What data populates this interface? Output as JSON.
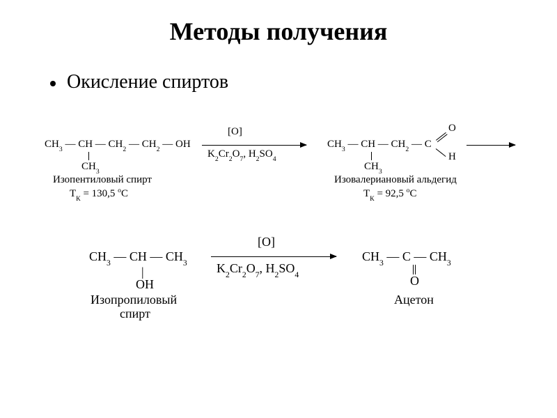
{
  "title": "Методы получения",
  "subtitle": "Окисление спиртов",
  "reaction1": {
    "reactant_formula_html": "CH<span class='sub'>3</span> — CH — CH<span class='sub'>2</span> — CH<span class='sub'>2</span> — OH",
    "reactant_branch": "CH",
    "reactant_branch_sub": "3",
    "reactant_name": "Изопентиловый спирт",
    "reactant_bp": "Т<span class='sub'>К</span> = 130,5 <span class='sup'>o</span>C",
    "reagent_top": "[O]",
    "reagent_bottom_html": "K<span class='sub'>2</span>Cr<span class='sub'>2</span>O<span class='sub'>7</span>, H<span class='sub'>2</span>SO<span class='sub'>4</span>",
    "product_formula_html": "CH<span class='sub'>3</span> — CH — CH<span class='sub'>2</span> — C",
    "product_branch": "CH",
    "product_branch_sub": "3",
    "product_cho_top": "O",
    "product_cho_bottom": "H",
    "product_name": "Изовалериановый альдегид",
    "product_bp": "Т<span class='sub'>К</span> = 92,5 <span class='sup'>o</span>C"
  },
  "reaction2": {
    "reactant_formula_html": "CH<span class='sub'>3</span> — CH — CH<span class='sub'>3</span>",
    "reactant_oh": "OH",
    "reactant_name": "Изопропиловый",
    "reactant_name2": "спирт",
    "reagent_top": "[O]",
    "reagent_bottom_html": "K<span class='sub'>2</span>Cr<span class='sub'>2</span>O<span class='sub'>7</span>, H<span class='sub'>2</span>SO<span class='sub'>4</span>",
    "product_formula_html": "CH<span class='sub'>3</span> — C — CH<span class='sub'>3</span>",
    "product_o": "O",
    "product_name": "Ацетон"
  },
  "colors": {
    "text": "#000000",
    "bg": "#ffffff"
  },
  "fonts": {
    "title_size": 36,
    "subtitle_size": 28,
    "chem_size": 15
  }
}
